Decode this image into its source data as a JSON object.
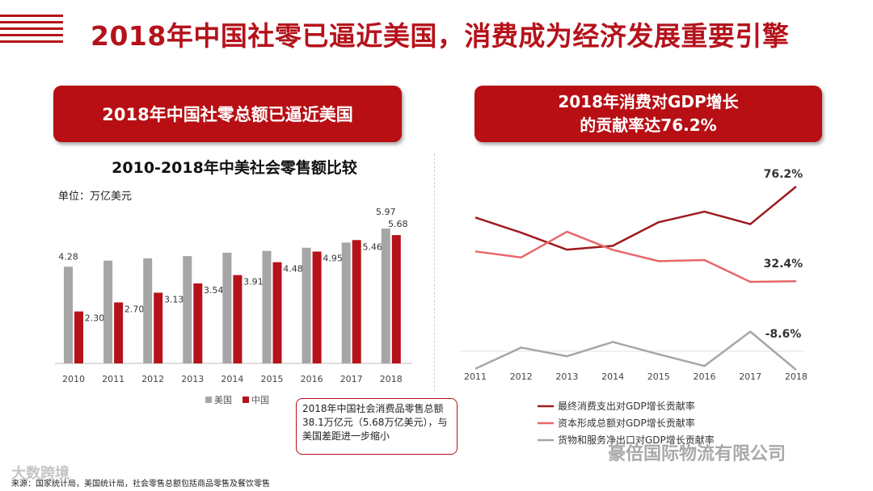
{
  "header": {
    "title": "2018年中国社零已逼近美国，消费成为经济发展重要引擎"
  },
  "left_panel": {
    "banner": "2018年中国社零总额已逼近美国",
    "chart_title": "2010-2018年中美社会零售额比较",
    "unit": "单位：万亿美元",
    "callout": "2018年中国社会消费品零售总额38.1万亿元（5.68万亿美元），与美国差距进一步缩小"
  },
  "right_panel": {
    "banner_line1": "2018年消费对GDP增长",
    "banner_line2": "的贡献率达76.2%"
  },
  "footer": {
    "source": "来源：国家统计局，美国统计局，社会零售总额包括商品零售及餐饮零售",
    "watermark_left": "大数跨境",
    "watermark_right": "豪倍国际物流有限公司"
  },
  "chart_data": [
    {
      "type": "bar",
      "title": "2010-2018年中美社会零售额比较",
      "ylabel": "单位：万亿美元",
      "categories": [
        "2010",
        "2011",
        "2012",
        "2013",
        "2014",
        "2015",
        "2016",
        "2017",
        "2018"
      ],
      "series": [
        {
          "name": "美国",
          "color": "#a6a6a6",
          "values": [
            4.28,
            4.55,
            4.65,
            4.75,
            4.9,
            4.98,
            5.12,
            5.35,
            5.97
          ]
        },
        {
          "name": "中国",
          "color": "#b5121b",
          "values": [
            2.3,
            2.7,
            3.13,
            3.54,
            3.91,
            4.48,
            4.95,
            5.46,
            5.68
          ]
        }
      ],
      "data_labels": {
        "美国": [
          "4.28",
          "",
          "",
          "",
          "",
          "",
          "",
          "",
          "5.97"
        ],
        "中国": [
          "2.30",
          "2.70",
          "3.13",
          "3.54",
          "3.91",
          "4.48",
          "4.95",
          "5.46",
          "5.68"
        ]
      },
      "ylim": [
        0,
        6.5
      ],
      "grid": false,
      "legend": "bottom"
    },
    {
      "type": "line",
      "x": [
        "2011",
        "2012",
        "2013",
        "2014",
        "2015",
        "2016",
        "2017",
        "2018"
      ],
      "series": [
        {
          "name": "最终消费支出对GDP增长贡献率",
          "color": "#9e1a1d",
          "values": [
            61.9,
            54.9,
            47.0,
            48.8,
            59.7,
            64.6,
            58.8,
            76.2
          ]
        },
        {
          "name": "资本形成总额对GDP增长贡献率",
          "color": "#e8676a",
          "values": [
            46.2,
            43.4,
            55.3,
            46.9,
            41.7,
            42.2,
            32.1,
            32.4
          ]
        },
        {
          "name": "货物和服务净出口对GDP增长贡献率",
          "color": "#a6a6a6",
          "values": [
            -8.1,
            1.7,
            -2.3,
            4.3,
            -1.4,
            -6.8,
            9.1,
            -8.6
          ]
        }
      ],
      "end_labels": [
        "76.2%",
        "32.4%",
        "-8.6%"
      ],
      "ylim": [
        -12,
        90
      ],
      "grid": false,
      "legend": "bottom"
    }
  ]
}
